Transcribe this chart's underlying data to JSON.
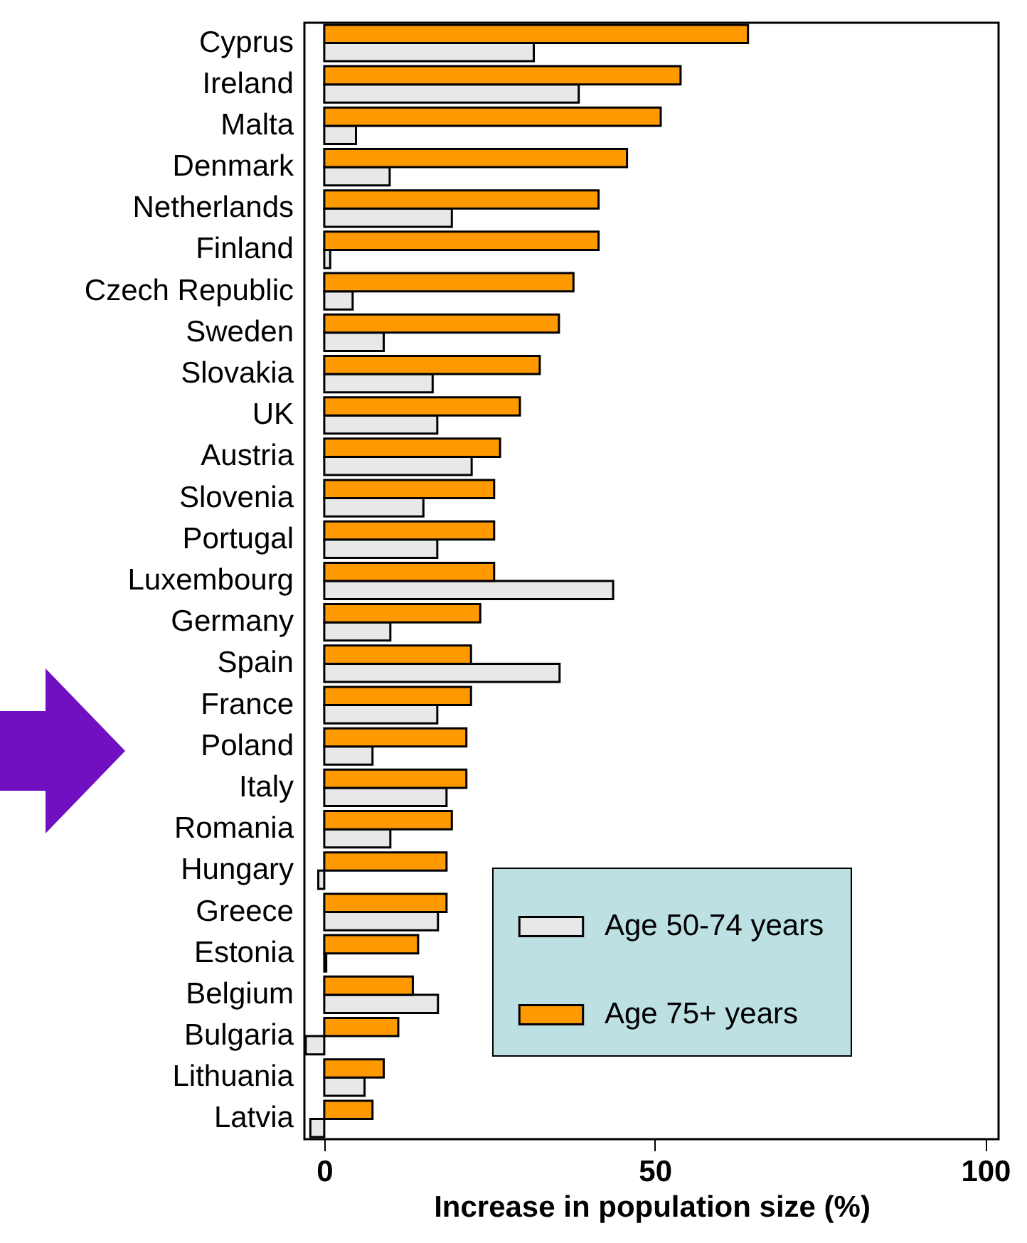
{
  "chart_data": {
    "type": "bar",
    "orientation": "horizontal",
    "xlabel": "Increase in population size (%)",
    "categories": [
      "Cyprus",
      "Ireland",
      "Malta",
      "Denmark",
      "Netherlands",
      "Finland",
      "Czech Republic",
      "Sweden",
      "Slovakia",
      "UK",
      "Austria",
      "Slovenia",
      "Portugal",
      "Luxembourg",
      "Germany",
      "Spain",
      "France",
      "Poland",
      "Italy",
      "Romania",
      "Hungary",
      "Greece",
      "Estonia",
      "Belgium",
      "Bulgaria",
      "Lithuania",
      "Latvia"
    ],
    "series": [
      {
        "name": "Age 50-74 years",
        "color": "#e8e8e8",
        "values": [
          31.7,
          38.5,
          4.8,
          9.9,
          19.3,
          0.9,
          4.3,
          9.0,
          16.4,
          17.1,
          22.3,
          15.0,
          17.1,
          43.7,
          10.0,
          35.6,
          17.1,
          7.3,
          18.5,
          10.0,
          -0.9,
          17.2,
          0.3,
          17.2,
          -2.8,
          6.1,
          -2.1
        ]
      },
      {
        "name": "Age 75+ years",
        "color": "#ff9900",
        "values": [
          64.1,
          53.9,
          50.9,
          45.8,
          41.5,
          41.5,
          37.7,
          35.5,
          32.6,
          29.6,
          26.6,
          25.7,
          25.7,
          25.7,
          23.6,
          22.2,
          22.2,
          21.5,
          21.5,
          19.3,
          18.5,
          18.5,
          14.2,
          13.4,
          11.2,
          9.0,
          7.3
        ]
      }
    ],
    "xlim": [
      -3,
      102
    ],
    "xticks": [
      0,
      50,
      100
    ],
    "grid": false,
    "legend": "bottom right"
  }
}
